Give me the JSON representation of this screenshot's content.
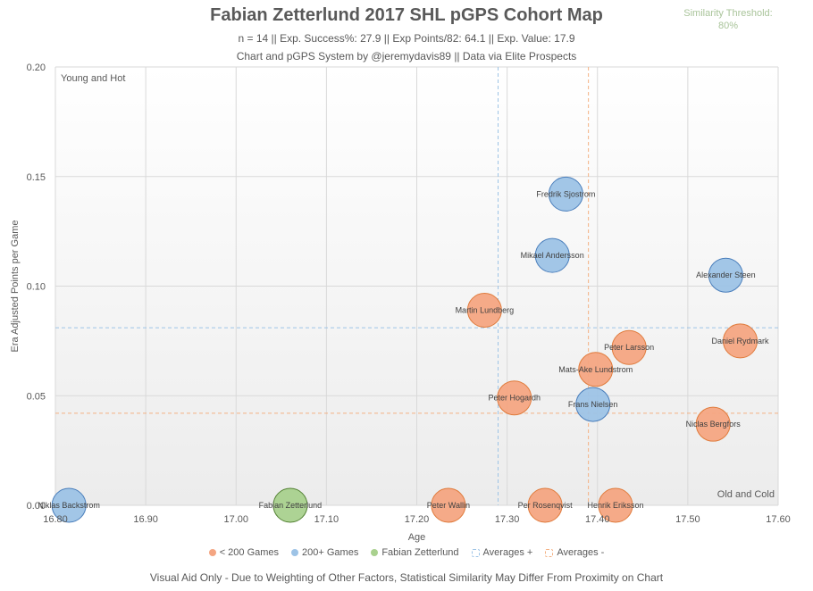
{
  "header": {
    "title": "Fabian Zetterlund 2017 SHL pGPS Cohort Map",
    "subtitle1": "n = 14 || Exp. Success%: 27.9 || Exp Points/82: 64.1 || Exp. Value: 17.9",
    "subtitle2": "Chart and pGPS System by @jeremydavis89 || Data via Elite Prospects",
    "threshold_label": "Similarity Threshold:",
    "threshold_value": "80%"
  },
  "footer": {
    "note": "Visual Aid Only - Due to Weighting of Other Factors, Statistical Similarity May Differ From Proximity on Chart"
  },
  "colors": {
    "under200": "#f4a582",
    "under200_stroke": "#e07b3c",
    "over200": "#9dc3e6",
    "over200_stroke": "#4a7ebb",
    "player": "#a9d18e",
    "player_stroke": "#548235",
    "avg_plus": "#9dc3e6",
    "avg_minus": "#f4b183"
  },
  "chart_data": {
    "type": "scatter",
    "title": "Fabian Zetterlund 2017 SHL pGPS Cohort Map",
    "xlabel": "Age",
    "ylabel": "Era Adjusted Points per Game",
    "xlim": [
      16.8,
      17.6
    ],
    "ylim": [
      0,
      0.2
    ],
    "xticks": [
      "16.80",
      "16.90",
      "17.00",
      "17.10",
      "17.20",
      "17.30",
      "17.40",
      "17.50",
      "17.60"
    ],
    "yticks": [
      "0.00",
      "0.05",
      "0.10",
      "0.15",
      "0.20"
    ],
    "grid": true,
    "quadrant_labels": {
      "top_left": "Young and Hot",
      "bottom_right": "Old and Cold"
    },
    "averages": {
      "plus": {
        "x": 17.29,
        "y": 0.081
      },
      "minus": {
        "x": 17.39,
        "y": 0.042
      }
    },
    "legend": [
      "< 200 Games",
      "200+ Games",
      "Fabian Zetterlund",
      "Averages +",
      "Averages -"
    ],
    "series": [
      {
        "name": "< 200 Games",
        "points": [
          {
            "label": "Martin Lundberg",
            "x": 17.275,
            "y": 0.089
          },
          {
            "label": "Peter Larsson",
            "x": 17.435,
            "y": 0.072
          },
          {
            "label": "Daniel Rydmark",
            "x": 17.558,
            "y": 0.075
          },
          {
            "label": "Mats-Ake Lundstrom",
            "x": 17.398,
            "y": 0.062
          },
          {
            "label": "Peter Hogardh",
            "x": 17.308,
            "y": 0.049
          },
          {
            "label": "Niclas Bergfors",
            "x": 17.528,
            "y": 0.037
          },
          {
            "label": "Peter Wallin",
            "x": 17.235,
            "y": 0.0
          },
          {
            "label": "Per Rosenqvist",
            "x": 17.342,
            "y": 0.0
          },
          {
            "label": "Henrik Eriksson",
            "x": 17.42,
            "y": 0.0
          }
        ]
      },
      {
        "name": "200+ Games",
        "points": [
          {
            "label": "Fredrik Sjostrom",
            "x": 17.365,
            "y": 0.142
          },
          {
            "label": "Mikael Andersson",
            "x": 17.35,
            "y": 0.114
          },
          {
            "label": "Alexander Steen",
            "x": 17.542,
            "y": 0.105
          },
          {
            "label": "Frans Nielsen",
            "x": 17.395,
            "y": 0.046
          },
          {
            "label": "Niklas Backstrom",
            "x": 16.815,
            "y": 0.0
          }
        ]
      },
      {
        "name": "Fabian Zetterlund",
        "points": [
          {
            "label": "Fabian Zetterlund",
            "x": 17.06,
            "y": 0.0
          }
        ]
      }
    ]
  }
}
